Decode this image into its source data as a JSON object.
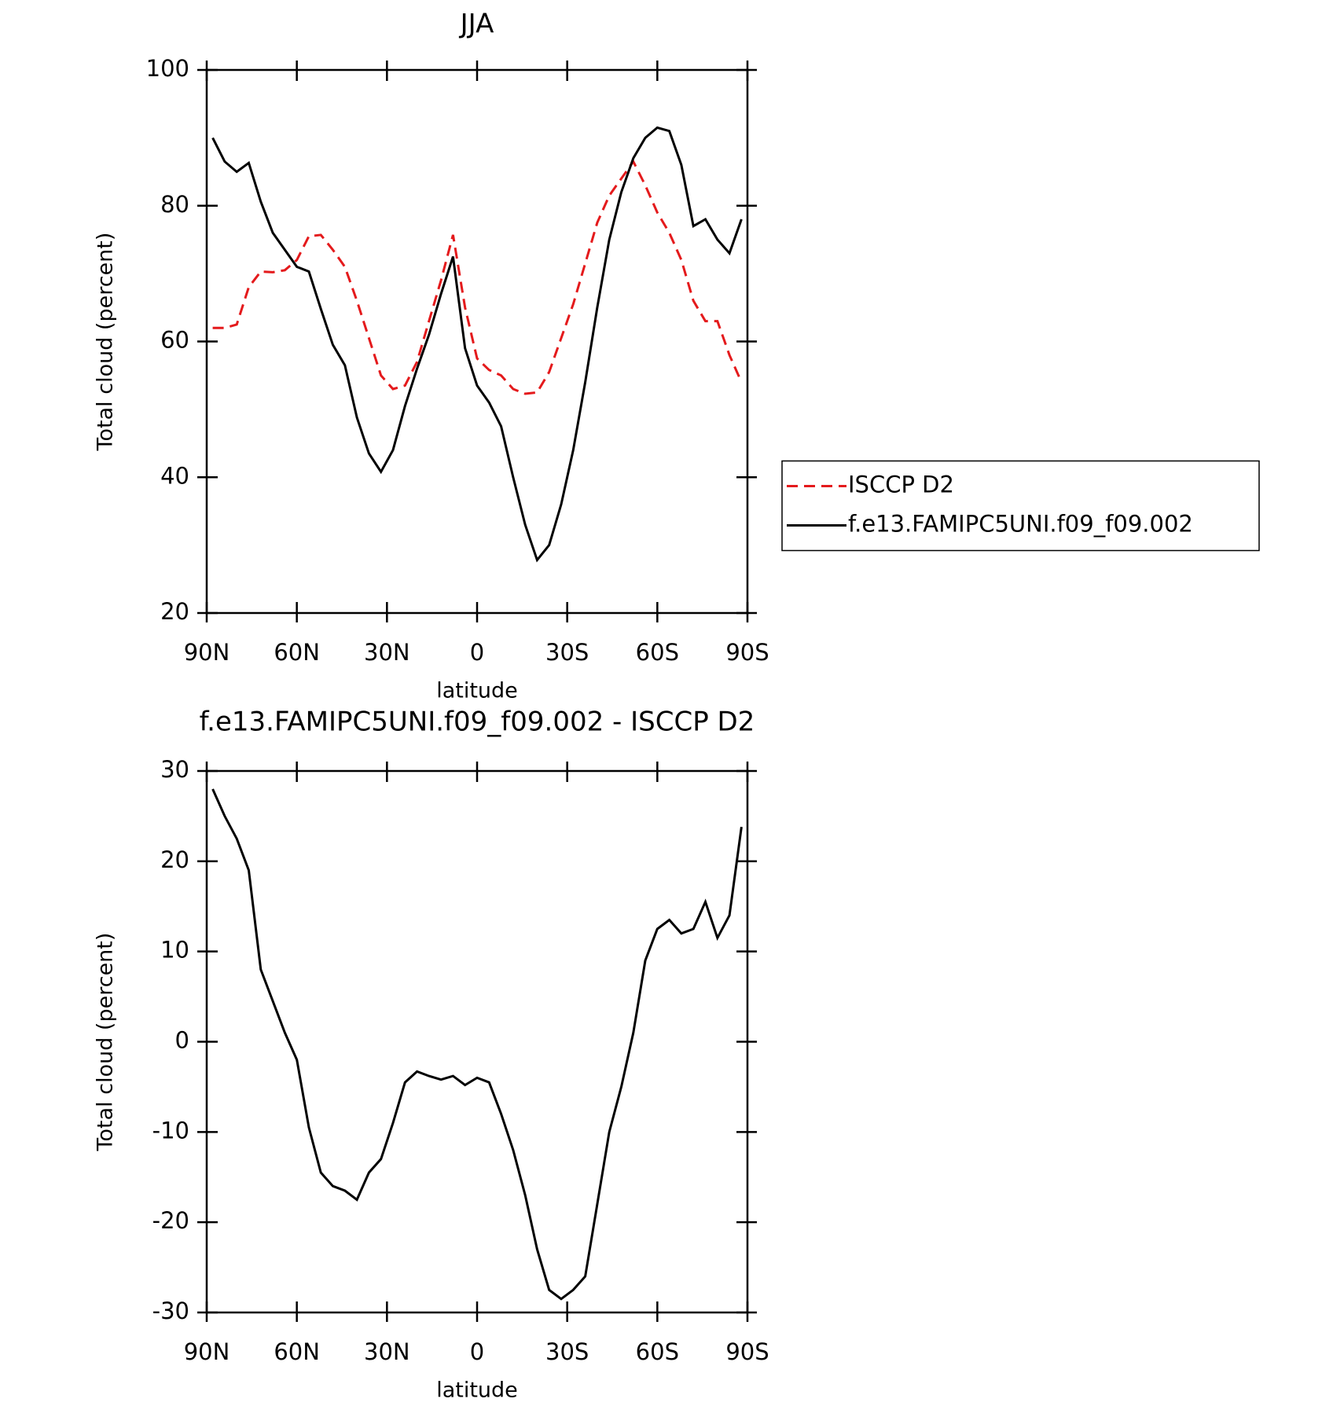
{
  "chart_data": [
    {
      "type": "line",
      "title": "JJA",
      "xlabel": "latitude",
      "ylabel": "Total cloud (percent)",
      "x": [
        88,
        84,
        80,
        76,
        72,
        68,
        64,
        60,
        56,
        52,
        48,
        44,
        40,
        36,
        32,
        28,
        24,
        20,
        16,
        12,
        8,
        4,
        0,
        -4,
        -8,
        -12,
        -16,
        -20,
        -24,
        -28,
        -32,
        -36,
        -40,
        -44,
        -48,
        -52,
        -56,
        -60,
        -64,
        -68,
        -72,
        -76,
        -80,
        -84,
        -88
      ],
      "xlim": [
        90,
        -90
      ],
      "xticks": [
        {
          "value": 90,
          "label": "90N"
        },
        {
          "value": 60,
          "label": "60N"
        },
        {
          "value": 30,
          "label": "30N"
        },
        0,
        {
          "value": -30,
          "label": "30S"
        },
        {
          "value": -60,
          "label": "60S"
        },
        {
          "value": -90,
          "label": "90S"
        }
      ],
      "ylim": [
        20,
        100
      ],
      "yticks": [
        20,
        40,
        60,
        80,
        100
      ],
      "legend": "outside-right",
      "series": [
        {
          "name": "ISCCP D2",
          "color": "#e41a1c",
          "dash": "dashed",
          "values": [
            62,
            62,
            62.5,
            68,
            70.3,
            70.2,
            70.5,
            72,
            75.5,
            75.7,
            73.5,
            71,
            66,
            60.5,
            55,
            53,
            53.5,
            57,
            63,
            69,
            75.7,
            65,
            57.5,
            55.8,
            55,
            53,
            52.3,
            52.5,
            55.5,
            60.5,
            65.5,
            71.5,
            77.5,
            81.5,
            84,
            86.5,
            83,
            79,
            76,
            72,
            66,
            63,
            63,
            58,
            54
          ]
        },
        {
          "name": "f.e13.FAMIPC5UNI.f09_f09.002",
          "color": "#000000",
          "dash": "solid",
          "values": [
            90,
            86.5,
            85,
            86.3,
            80.6,
            76,
            73.5,
            71,
            70.3,
            64.8,
            59.5,
            56.5,
            48.8,
            43.5,
            40.8,
            44,
            50.5,
            56,
            61,
            67,
            72.5,
            59,
            53.5,
            51,
            47.5,
            40,
            33,
            27.8,
            30,
            36,
            44,
            54,
            65,
            75,
            82,
            87,
            90,
            91.5,
            91,
            86,
            77,
            78,
            75,
            73,
            78
          ]
        }
      ]
    },
    {
      "type": "line",
      "title": "f.e13.FAMIPC5UNI.f09_f09.002 - ISCCP D2",
      "xlabel": "latitude",
      "ylabel": "Total cloud (percent)",
      "x": [
        88,
        84,
        80,
        76,
        72,
        68,
        64,
        60,
        56,
        52,
        48,
        44,
        40,
        36,
        32,
        28,
        24,
        20,
        16,
        12,
        8,
        4,
        0,
        -4,
        -8,
        -12,
        -16,
        -20,
        -24,
        -28,
        -32,
        -36,
        -40,
        -44,
        -48,
        -52,
        -56,
        -60,
        -64,
        -68,
        -72,
        -76,
        -80,
        -84,
        -88
      ],
      "xlim": [
        90,
        -90
      ],
      "xticks": [
        {
          "value": 90,
          "label": "90N"
        },
        {
          "value": 60,
          "label": "60N"
        },
        {
          "value": 30,
          "label": "30N"
        },
        0,
        {
          "value": -30,
          "label": "30S"
        },
        {
          "value": -60,
          "label": "60S"
        },
        {
          "value": -90,
          "label": "90S"
        }
      ],
      "ylim": [
        -30,
        30
      ],
      "yticks": [
        -30,
        -20,
        -10,
        0,
        10,
        20,
        30
      ],
      "color": "#000000",
      "values": [
        28,
        25,
        22.5,
        19,
        8,
        4.5,
        1,
        -2,
        -9.5,
        -14.5,
        -16,
        -16.5,
        -17.5,
        -14.5,
        -13,
        -9,
        -4.5,
        -3.3,
        -3.8,
        -4.2,
        -3.8,
        -4.8,
        -4,
        -4.5,
        -8,
        -12,
        -17,
        -23,
        -27.5,
        -28.5,
        -27.5,
        -26,
        -18,
        -10,
        -5,
        1,
        9,
        12.5,
        13.5,
        12,
        12.5,
        15.5,
        11.5,
        14,
        23.8
      ]
    }
  ]
}
